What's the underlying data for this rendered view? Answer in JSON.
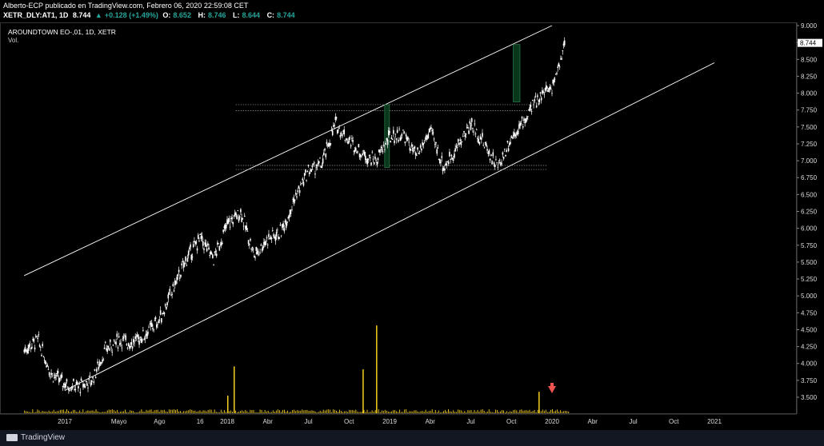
{
  "header": {
    "publish_line": "Alberto-ECP publicado en TradingView.com, Febrero 06, 2020 22:59:08 CET",
    "ticker": "XETR_DLY:AT1, 1D",
    "last": "8.744",
    "change_icon": "triangle-up-icon",
    "change": "+0.128 (+1.49%)",
    "o_label": "O:",
    "o": "8.652",
    "h_label": "H:",
    "h": "8.746",
    "l_label": "L:",
    "l": "8.644",
    "c_label": "C:",
    "c": "8.744"
  },
  "panel": {
    "symbol": "AROUNDTOWN EO-,01, 1D, XETR",
    "volume_label": "Vol."
  },
  "footer": {
    "brand": "TradingView"
  },
  "colors": {
    "background": "#000000",
    "candles": "#ffffff",
    "volume": "#f5d020",
    "channel": "#ffffff",
    "box": "#0b3d1f",
    "box_border": "#2e7d4f",
    "arrow": "#ef5350",
    "last_price_tag": "#ffffff"
  },
  "chart_data": {
    "type": "candlestick",
    "title": "AROUNDTOWN EO-,01, 1D, XETR",
    "y_axis": {
      "ticks": [
        "9.000",
        "8.750",
        "8.500",
        "8.250",
        "8.000",
        "7.750",
        "7.500",
        "7.250",
        "7.000",
        "6.750",
        "6.500",
        "6.250",
        "6.000",
        "5.750",
        "5.500",
        "5.250",
        "5.000",
        "4.750",
        "4.500",
        "4.250",
        "4.000",
        "3.750",
        "3.500"
      ],
      "range": [
        3.35,
        9.0
      ],
      "last_price_tag": "8.744"
    },
    "x_axis": {
      "ticks": [
        "2017",
        "Mayo",
        "Ago",
        "16",
        "2018",
        "Abr",
        "Jul",
        "Oct",
        "2019",
        "Abr",
        "Jul",
        "Oct",
        "2020",
        "Abr",
        "Jul",
        "Oct",
        "2021"
      ]
    },
    "price_path": [
      {
        "date": "2016-10",
        "close": 4.2
      },
      {
        "date": "2016-11",
        "close": 4.35
      },
      {
        "date": "2016-12",
        "close": 3.85
      },
      {
        "date": "2017-01",
        "close": 3.7
      },
      {
        "date": "2017-02",
        "close": 3.65
      },
      {
        "date": "2017-03",
        "close": 3.75
      },
      {
        "date": "2017-04",
        "close": 4.2
      },
      {
        "date": "2017-05",
        "close": 4.35
      },
      {
        "date": "2017-06",
        "close": 4.3
      },
      {
        "date": "2017-07",
        "close": 4.45
      },
      {
        "date": "2017-08",
        "close": 4.65
      },
      {
        "date": "2017-09",
        "close": 5.1
      },
      {
        "date": "2017-10",
        "close": 5.55
      },
      {
        "date": "2017-11",
        "close": 5.85
      },
      {
        "date": "2017-12",
        "close": 5.55
      },
      {
        "date": "2018-01",
        "close": 6.05
      },
      {
        "date": "2018-02",
        "close": 6.25
      },
      {
        "date": "2018-03",
        "close": 5.6
      },
      {
        "date": "2018-04",
        "close": 5.85
      },
      {
        "date": "2018-05",
        "close": 5.95
      },
      {
        "date": "2018-06",
        "close": 6.45
      },
      {
        "date": "2018-07",
        "close": 6.85
      },
      {
        "date": "2018-08",
        "close": 6.95
      },
      {
        "date": "2018-09",
        "close": 7.55
      },
      {
        "date": "2018-10",
        "close": 7.3
      },
      {
        "date": "2018-11",
        "close": 7.1
      },
      {
        "date": "2018-12",
        "close": 7.0
      },
      {
        "date": "2019-01",
        "close": 7.35
      },
      {
        "date": "2019-02",
        "close": 7.4
      },
      {
        "date": "2019-03",
        "close": 7.05
      },
      {
        "date": "2019-04",
        "close": 7.45
      },
      {
        "date": "2019-05",
        "close": 6.9
      },
      {
        "date": "2019-06",
        "close": 7.2
      },
      {
        "date": "2019-07",
        "close": 7.55
      },
      {
        "date": "2019-08",
        "close": 7.25
      },
      {
        "date": "2019-09",
        "close": 6.9
      },
      {
        "date": "2019-10",
        "close": 7.35
      },
      {
        "date": "2019-11",
        "close": 7.6
      },
      {
        "date": "2019-12",
        "close": 7.95
      },
      {
        "date": "2020-01",
        "close": 8.1
      },
      {
        "date": "2020-02",
        "close": 8.744
      }
    ],
    "annotations": {
      "channel_upper": {
        "from": {
          "date": "2016-10",
          "price": 5.3
        },
        "to": {
          "date": "2020-01",
          "price": 9.0
        }
      },
      "channel_lower": {
        "from": {
          "date": "2017-01",
          "price": 3.6
        },
        "to": {
          "date": "2021-01",
          "price": 8.45
        }
      },
      "resistance_levels": [
        7.83,
        7.74
      ],
      "support_levels": [
        6.93,
        6.87
      ],
      "boxes": [
        {
          "from": "2018-12-20",
          "to": "2018-12-30",
          "low": 6.9,
          "high": 7.83
        },
        {
          "from": "2019-10-05",
          "to": "2019-10-20",
          "low": 7.87,
          "high": 8.72
        }
      ],
      "arrow": {
        "date": "2020-01",
        "direction": "down"
      }
    },
    "volume": {
      "spikes": [
        {
          "date": "2018-01",
          "value": 0.18
        },
        {
          "date": "2018-01",
          "value": 0.48
        },
        {
          "date": "2018-11",
          "value": 0.45
        },
        {
          "date": "2018-12",
          "value": 0.9
        },
        {
          "date": "2019-12",
          "value": 0.22
        }
      ]
    }
  }
}
